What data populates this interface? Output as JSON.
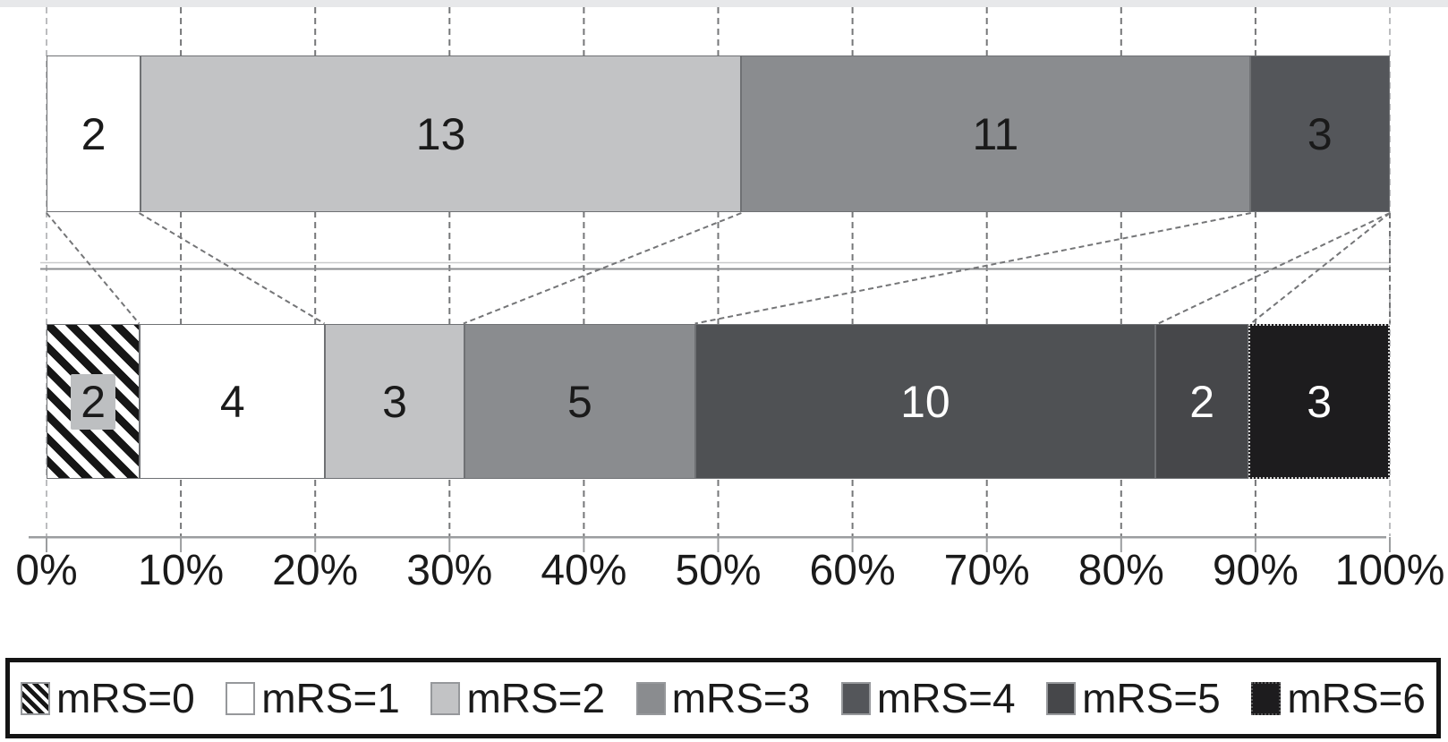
{
  "chart_data": {
    "type": "bar",
    "variant": "horizontal-stacked-distribution",
    "title": "",
    "categories": [
      "mRS=0",
      "mRS=1",
      "mRS=2",
      "mRS=3",
      "mRS=4",
      "mRS=5",
      "mRS=6"
    ],
    "bar_total": 29,
    "axis": {
      "ticks": [
        "0%",
        "10%",
        "20%",
        "30%",
        "40%",
        "50%",
        "60%",
        "70%",
        "80%",
        "90%",
        "100%"
      ],
      "min": 0,
      "max": 100,
      "unit": "%",
      "grid": "dashed vertical gridlines every 10%"
    },
    "bars": [
      {
        "key": "upper",
        "segments": [
          {
            "category": "mRS=1",
            "value": 2,
            "fill": "#ffffff",
            "label_color": "#1a1a1a"
          },
          {
            "category": "mRS=2",
            "value": 13,
            "fill": "#c2c3c5",
            "label_color": "#1a1a1a"
          },
          {
            "category": "mRS=3",
            "value": 11,
            "fill": "#8a8c8f",
            "label_color": "#1a1a1a"
          },
          {
            "category": "mRS=4",
            "value": 3,
            "fill": "#54565a",
            "label_color": "#1a1a1a"
          }
        ]
      },
      {
        "key": "lower",
        "segments": [
          {
            "category": "mRS=0",
            "value": 2,
            "fill": "hatched",
            "label_color": "#1a1a1a",
            "label_chip": "#bdbfc1"
          },
          {
            "category": "mRS=1",
            "value": 4,
            "fill": "#ffffff",
            "label_color": "#1a1a1a"
          },
          {
            "category": "mRS=2",
            "value": 3,
            "fill": "#c2c3c5",
            "label_color": "#1a1a1a"
          },
          {
            "category": "mRS=3",
            "value": 5,
            "fill": "#8a8c8f",
            "label_color": "#1a1a1a"
          },
          {
            "category": "mRS=4",
            "value": 10,
            "fill": "#4f5154",
            "label_color": "#ffffff"
          },
          {
            "category": "mRS=5",
            "value": 2,
            "fill": "#46474a",
            "label_color": "#ffffff"
          },
          {
            "category": "mRS=6",
            "value": 3,
            "fill": "#1d1c1e",
            "label_color": "#ffffff",
            "border": "dotted"
          }
        ]
      }
    ],
    "legend": {
      "position": "bottom",
      "items": [
        {
          "label": "mRS=0",
          "swatch": "hatched"
        },
        {
          "label": "mRS=1",
          "swatch": "#ffffff"
        },
        {
          "label": "mRS=2",
          "swatch": "#c2c3c5"
        },
        {
          "label": "mRS=3",
          "swatch": "#8a8c8f"
        },
        {
          "label": "mRS=4",
          "swatch": "#54565a"
        },
        {
          "label": "mRS=5",
          "swatch": "#46474a"
        },
        {
          "label": "mRS=6",
          "swatch": "#1d1c1e",
          "swatch_border": "dotted"
        }
      ]
    },
    "connectors": "dashed lines linking the cumulative mRS category boundaries of the upper bar to those of the lower bar",
    "colors": {
      "gridline": "#767779",
      "edge_gridline": "#bcbdbf",
      "axis_line": "#9b9d9f",
      "mid_separator": "#8b8d8f",
      "segment_border": "#6f7174",
      "connector": "#747577",
      "text": "#1a1a1a"
    }
  }
}
